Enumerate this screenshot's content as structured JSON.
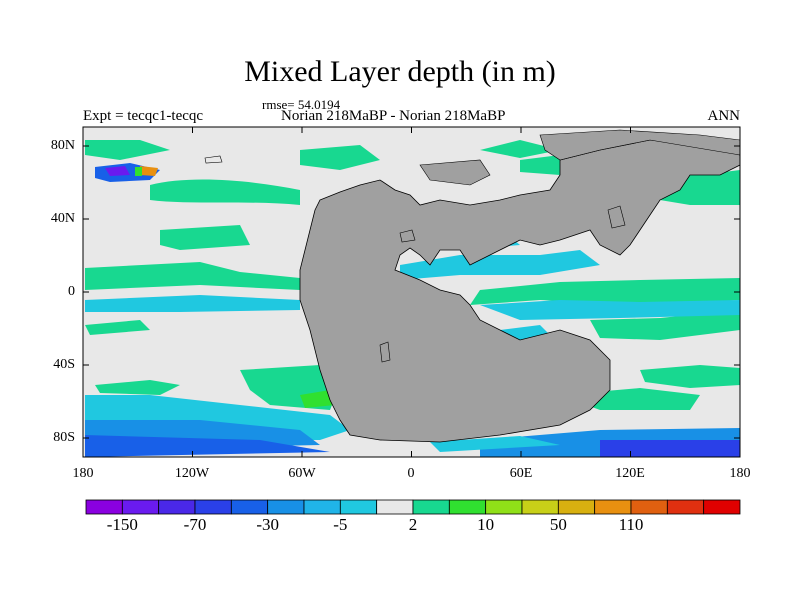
{
  "title": "Mixed Layer depth (in m)",
  "rmse": "rmse= 54.0194",
  "left_string": "Expt = tecqc1-tecqc",
  "center_string": "Norian 218MaBP - Norian 218MaBP",
  "right_string": "ANN",
  "lat_labels": [
    "80N",
    "40N",
    "0",
    "40S",
    "80S"
  ],
  "lon_labels": [
    "180",
    "120W",
    "60W",
    "0",
    "60E",
    "120E",
    "180"
  ],
  "colorbar": {
    "colors": [
      "#8a00e0",
      "#6a1bef",
      "#4a28e8",
      "#2a40e8",
      "#1860e8",
      "#1890e6",
      "#20b4e8",
      "#20c8e0",
      "#e8e8e8",
      "#18d890",
      "#30e030",
      "#90e018",
      "#c8d018",
      "#d8b010",
      "#e89010",
      "#e06010",
      "#e03010",
      "#e00000"
    ],
    "labels": [
      "-150",
      "-70",
      "-30",
      "-5",
      "2",
      "10",
      "50",
      "110"
    ]
  },
  "map_colors": {
    "land": "#a0a0a0",
    "ocean_neutral": "#e8e8e8"
  }
}
